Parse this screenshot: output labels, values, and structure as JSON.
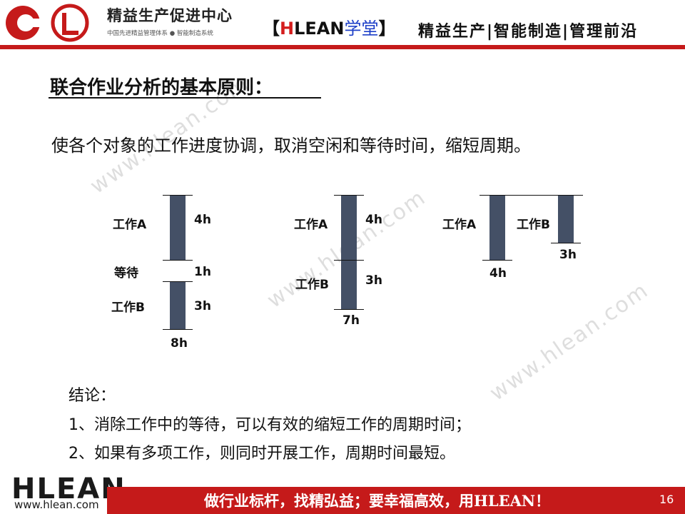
{
  "header": {
    "center_name": "精益生产促进中心",
    "center_subtitle": "中国先进精益管理体系 ● 智能制造系统",
    "tag_open": "【",
    "tag_h": "H",
    "tag_lean": "LEAN",
    "tag_xuetang": "学堂",
    "tag_close": "】",
    "slogan": "精益生产|智能制造|管理前沿",
    "brand_color": "#c51a1a"
  },
  "slide": {
    "title": "联合作业分析的基本原则：",
    "principle": "使各个对象的工作进度协调，取消空闲和等待时间，缩短周期。"
  },
  "diagrams": {
    "d1": {
      "work_a": "工作A",
      "work_a_time": "4h",
      "wait": "等待",
      "wait_time": "1h",
      "work_b": "工作B",
      "work_b_time": "3h",
      "total": "8h"
    },
    "d2": {
      "work_a": "工作A",
      "work_a_time": "4h",
      "work_b": "工作B",
      "work_b_time": "3h",
      "total": "7h"
    },
    "d3": {
      "work_a": "工作A",
      "work_a_time": "4h",
      "work_b": "工作B",
      "work_b_time": "3h"
    }
  },
  "conclusion": {
    "heading": "结论：",
    "line1": "1、消除工作中的等待，可以有效的缩短工作的周期时间；",
    "line2": "2、如果有多项工作，则同时开展工作，周期时间最短。"
  },
  "watermark": "www.hlean.com",
  "footer": {
    "logo": "HLEAN",
    "url": "www.hlean.com",
    "slogan": "做行业标杆，找精弘益；要幸福高效，用HLEAN！",
    "page_number": "16"
  }
}
